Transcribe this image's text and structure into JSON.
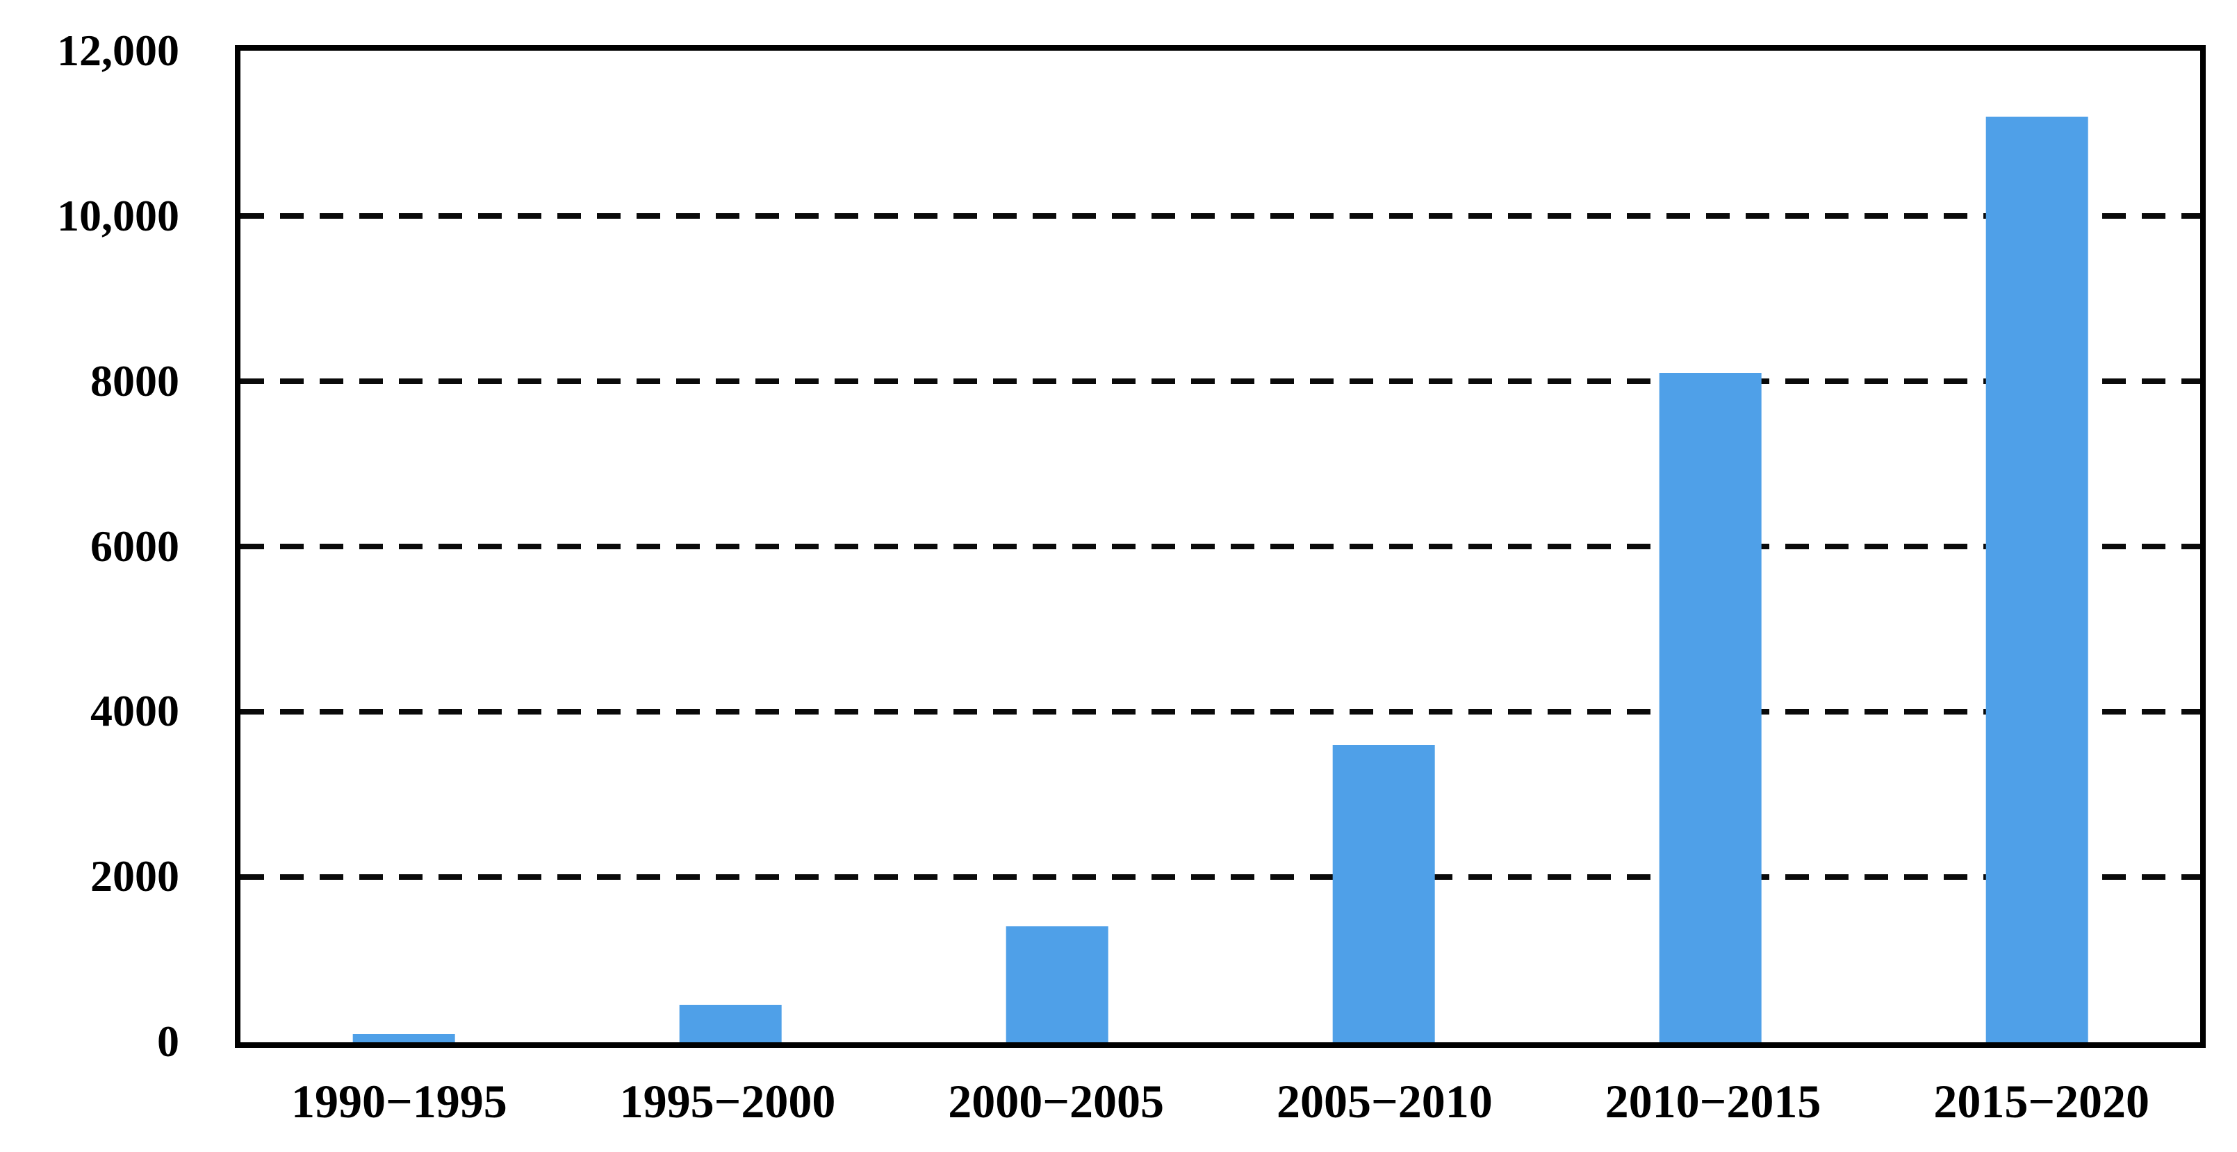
{
  "chart_data": {
    "type": "bar",
    "title": "",
    "xlabel": "",
    "ylabel": "",
    "categories": [
      "1990−1995",
      "1995−2000",
      "2000−2005",
      "2005−2010",
      "2010−2015",
      "2015−2020"
    ],
    "values": [
      100,
      450,
      1400,
      3600,
      8100,
      11200
    ],
    "ylim": [
      0,
      12000
    ],
    "ytick_interval": 2000,
    "ytick_labels": [
      "0",
      "2000",
      "4000",
      "6000",
      "8000",
      "10,000",
      "12,000"
    ],
    "grid": "horizontal-dashed",
    "plot_border": "full-box-solid",
    "legend_position": "none",
    "bar_color": "#4FA0E8",
    "axis_color": "#000000",
    "background_color": "#ffffff",
    "bar_width_fraction_of_slot": 0.312
  }
}
